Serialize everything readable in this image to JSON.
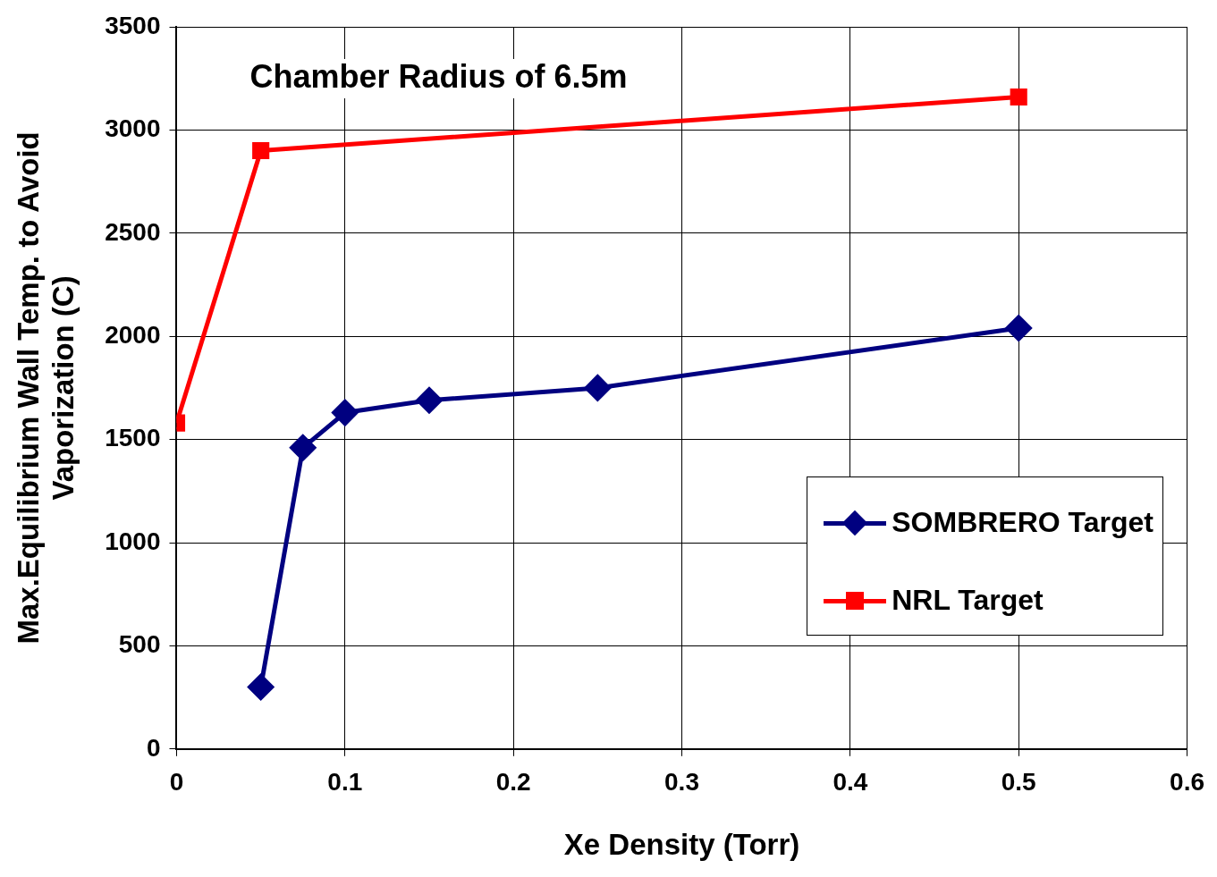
{
  "chart_data": {
    "type": "line",
    "title": "Chamber Radius of 6.5m",
    "xlabel": "Xe Density (Torr)",
    "ylabel": "Max.Equilibrium Wall Temp. to Avoid\nVaporization (C)",
    "xlim": [
      0,
      0.6
    ],
    "xticks": [
      0,
      0.1,
      0.2,
      0.3,
      0.4,
      0.5,
      0.6
    ],
    "ylim": [
      0,
      3500
    ],
    "yticks": [
      0,
      500,
      1000,
      1500,
      2000,
      2500,
      3000,
      3500
    ],
    "grid": true,
    "legend": "right",
    "series": [
      {
        "name": "SOMBRERO Target",
        "color": "#000080",
        "marker": "diamond",
        "x": [
          0.05,
          0.075,
          0.1,
          0.15,
          0.25,
          0.5
        ],
        "values": [
          300,
          1460,
          1630,
          1690,
          1750,
          2040
        ]
      },
      {
        "name": "NRL Target",
        "color": "#ff0000",
        "marker": "square",
        "x": [
          0,
          0.05,
          0.5
        ],
        "values": [
          1580,
          2900,
          3160
        ]
      }
    ]
  }
}
